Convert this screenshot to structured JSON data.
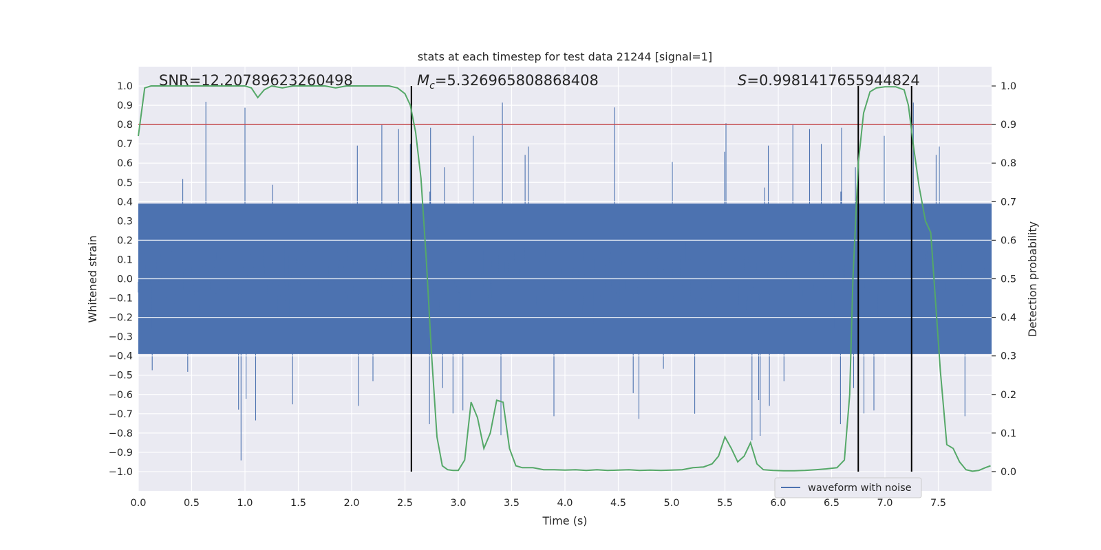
{
  "chart_data": {
    "type": "line",
    "title": "stats at each timestep for test data 21244 [signal=1]",
    "xlabel": "Time (s)",
    "ylabel_left": "Whitened strain",
    "ylabel_right": "Detection probability",
    "xlim": [
      0.0,
      8.0
    ],
    "ylim_left": [
      -1.1,
      1.1
    ],
    "ylim_right": [
      -0.05,
      1.05
    ],
    "xticks": [
      0.0,
      0.5,
      1.0,
      1.5,
      2.0,
      2.5,
      3.0,
      3.5,
      4.0,
      4.5,
      5.0,
      5.5,
      6.0,
      6.5,
      7.0,
      7.5
    ],
    "xtick_labels": [
      "0.0",
      "0.5",
      "1.0",
      "1.5",
      "2.0",
      "2.5",
      "3.0",
      "3.5",
      "4.0",
      "4.5",
      "5.0",
      "5.5",
      "6.0",
      "6.5",
      "7.0",
      "7.5"
    ],
    "yticks_left": [
      1.0,
      0.9,
      0.8,
      0.7,
      0.6,
      0.5,
      0.4,
      0.3,
      0.2,
      0.1,
      0.0,
      -0.1,
      -0.2,
      -0.3,
      -0.4,
      -0.5,
      -0.6,
      -0.7,
      -0.8,
      -0.9,
      -1.0
    ],
    "ytick_labels_left": [
      "1.0",
      "0.9",
      "0.8",
      "0.7",
      "0.6",
      "0.5",
      "0.4",
      "0.3",
      "0.2",
      "0.1",
      "0.0",
      "−0.1",
      "−0.2",
      "−0.3",
      "−0.4",
      "−0.5",
      "−0.6",
      "−0.7",
      "−0.8",
      "−0.9",
      "−1.0"
    ],
    "yticks_right": [
      1.0,
      0.9,
      0.8,
      0.7,
      0.6,
      0.5,
      0.4,
      0.3,
      0.2,
      0.1,
      0.0
    ],
    "ytick_labels_right": [
      "1.0",
      "0.9",
      "0.8",
      "0.7",
      "0.6",
      "0.5",
      "0.4",
      "0.3",
      "0.2",
      "0.1",
      "0.0"
    ],
    "annotations": {
      "snr": "SNR=12.20789623260498",
      "mc_symbol": "M",
      "mc_sub": "c",
      "mc_value": "=5.326965808868408",
      "s_symbol": "S",
      "s_value": "=0.9981417655944824"
    },
    "threshold": {
      "value": 0.9,
      "axis": "right",
      "color": "#c44e52"
    },
    "vlines": [
      2.56,
      6.75,
      7.25
    ],
    "legend": {
      "label": "waveform with noise",
      "location": "lower-right"
    },
    "colors": {
      "waveform": "#4c72b0",
      "probability": "#55a868",
      "threshold": "#c44e52",
      "vline": "#000000",
      "background": "#eaeaf2",
      "grid": "#ffffff"
    },
    "series": [
      {
        "name": "Detection probability",
        "axis": "right",
        "x": [
          0.0,
          0.06,
          0.12,
          0.2,
          0.3,
          0.4,
          0.5,
          0.6,
          0.7,
          0.8,
          0.9,
          1.0,
          1.06,
          1.12,
          1.18,
          1.25,
          1.35,
          1.45,
          1.55,
          1.65,
          1.75,
          1.85,
          1.95,
          2.05,
          2.15,
          2.25,
          2.35,
          2.43,
          2.5,
          2.55,
          2.6,
          2.65,
          2.7,
          2.75,
          2.8,
          2.85,
          2.9,
          2.95,
          3.0,
          3.06,
          3.12,
          3.18,
          3.24,
          3.3,
          3.36,
          3.42,
          3.48,
          3.54,
          3.6,
          3.7,
          3.8,
          3.9,
          4.0,
          4.1,
          4.2,
          4.3,
          4.4,
          4.5,
          4.6,
          4.7,
          4.8,
          4.9,
          5.0,
          5.1,
          5.2,
          5.3,
          5.38,
          5.44,
          5.5,
          5.56,
          5.62,
          5.68,
          5.74,
          5.8,
          5.86,
          5.95,
          6.05,
          6.15,
          6.25,
          6.35,
          6.45,
          6.55,
          6.62,
          6.67,
          6.7,
          6.75,
          6.8,
          6.86,
          6.92,
          7.0,
          7.1,
          7.18,
          7.22,
          7.27,
          7.32,
          7.38,
          7.43,
          7.48,
          7.52,
          7.58,
          7.64,
          7.7,
          7.76,
          7.82,
          7.88,
          7.94,
          7.99
        ],
        "y": [
          0.87,
          0.995,
          1.0,
          1.0,
          1.0,
          1.0,
          1.0,
          1.0,
          1.0,
          1.0,
          1.0,
          1.0,
          0.995,
          0.97,
          0.99,
          1.0,
          0.995,
          1.0,
          1.0,
          1.0,
          1.0,
          0.995,
          1.0,
          1.0,
          1.0,
          1.0,
          1.0,
          0.995,
          0.98,
          0.95,
          0.88,
          0.76,
          0.55,
          0.3,
          0.09,
          0.015,
          0.005,
          0.003,
          0.003,
          0.03,
          0.18,
          0.14,
          0.06,
          0.1,
          0.185,
          0.18,
          0.06,
          0.015,
          0.01,
          0.01,
          0.005,
          0.005,
          0.004,
          0.005,
          0.003,
          0.005,
          0.003,
          0.004,
          0.005,
          0.003,
          0.004,
          0.003,
          0.004,
          0.005,
          0.01,
          0.012,
          0.02,
          0.04,
          0.09,
          0.06,
          0.025,
          0.04,
          0.075,
          0.02,
          0.005,
          0.003,
          0.002,
          0.002,
          0.003,
          0.005,
          0.007,
          0.01,
          0.03,
          0.2,
          0.5,
          0.8,
          0.93,
          0.985,
          0.995,
          0.998,
          0.998,
          0.99,
          0.95,
          0.84,
          0.74,
          0.65,
          0.62,
          0.42,
          0.26,
          0.07,
          0.06,
          0.025,
          0.005,
          0.001,
          0.003,
          0.01,
          0.015
        ]
      }
    ]
  }
}
